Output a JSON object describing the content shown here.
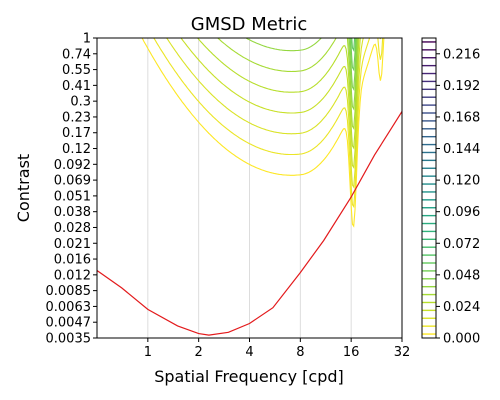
{
  "chart_data": {
    "type": "line",
    "subtype": "contour",
    "title": "GMSD Metric",
    "xlabel": "Spatial Frequency [cpd]",
    "ylabel": "Contrast",
    "x_scale": "log2",
    "y_scale": "log",
    "xlim": [
      0.5,
      32
    ],
    "ylim": [
      0.0035,
      1
    ],
    "grid": "vertical",
    "x_ticks": [
      "1",
      "2",
      "4",
      "8",
      "16",
      "32"
    ],
    "y_ticks": [
      "1",
      "0.74",
      "0.55",
      "0.41",
      "0.3",
      "0.23",
      "0.17",
      "0.12",
      "0.092",
      "0.069",
      "0.051",
      "0.038",
      "0.028",
      "0.021",
      "0.016",
      "0.012",
      "0.0085",
      "0.0063",
      "0.0047",
      "0.0035"
    ],
    "colorbar": {
      "ticks": [
        "0.000",
        "0.024",
        "0.048",
        "0.072",
        "0.096",
        "0.120",
        "0.144",
        "0.168",
        "0.192",
        "0.216"
      ],
      "min": 0,
      "max": 0.228,
      "levels": 38,
      "colormap": "viridis"
    },
    "contour_valley": {
      "x": 8,
      "x_spike": 16.5,
      "x_spike2": 24
    },
    "contour_offset_first": 0.25,
    "contour_step": 0.125,
    "series": [
      {
        "color": "#e31a1c",
        "points": [
          [
            0.5,
            0.0125
          ],
          [
            0.7,
            0.009
          ],
          [
            1.0,
            0.006
          ],
          [
            1.5,
            0.0044
          ],
          [
            2.0,
            0.0038
          ],
          [
            2.3,
            0.0037
          ],
          [
            3.0,
            0.0039
          ],
          [
            4.0,
            0.0046
          ],
          [
            5.5,
            0.0062
          ],
          [
            8.0,
            0.012
          ],
          [
            11.0,
            0.022
          ],
          [
            16.0,
            0.05
          ],
          [
            22.0,
            0.11
          ],
          [
            32.0,
            0.25
          ]
        ]
      }
    ]
  }
}
